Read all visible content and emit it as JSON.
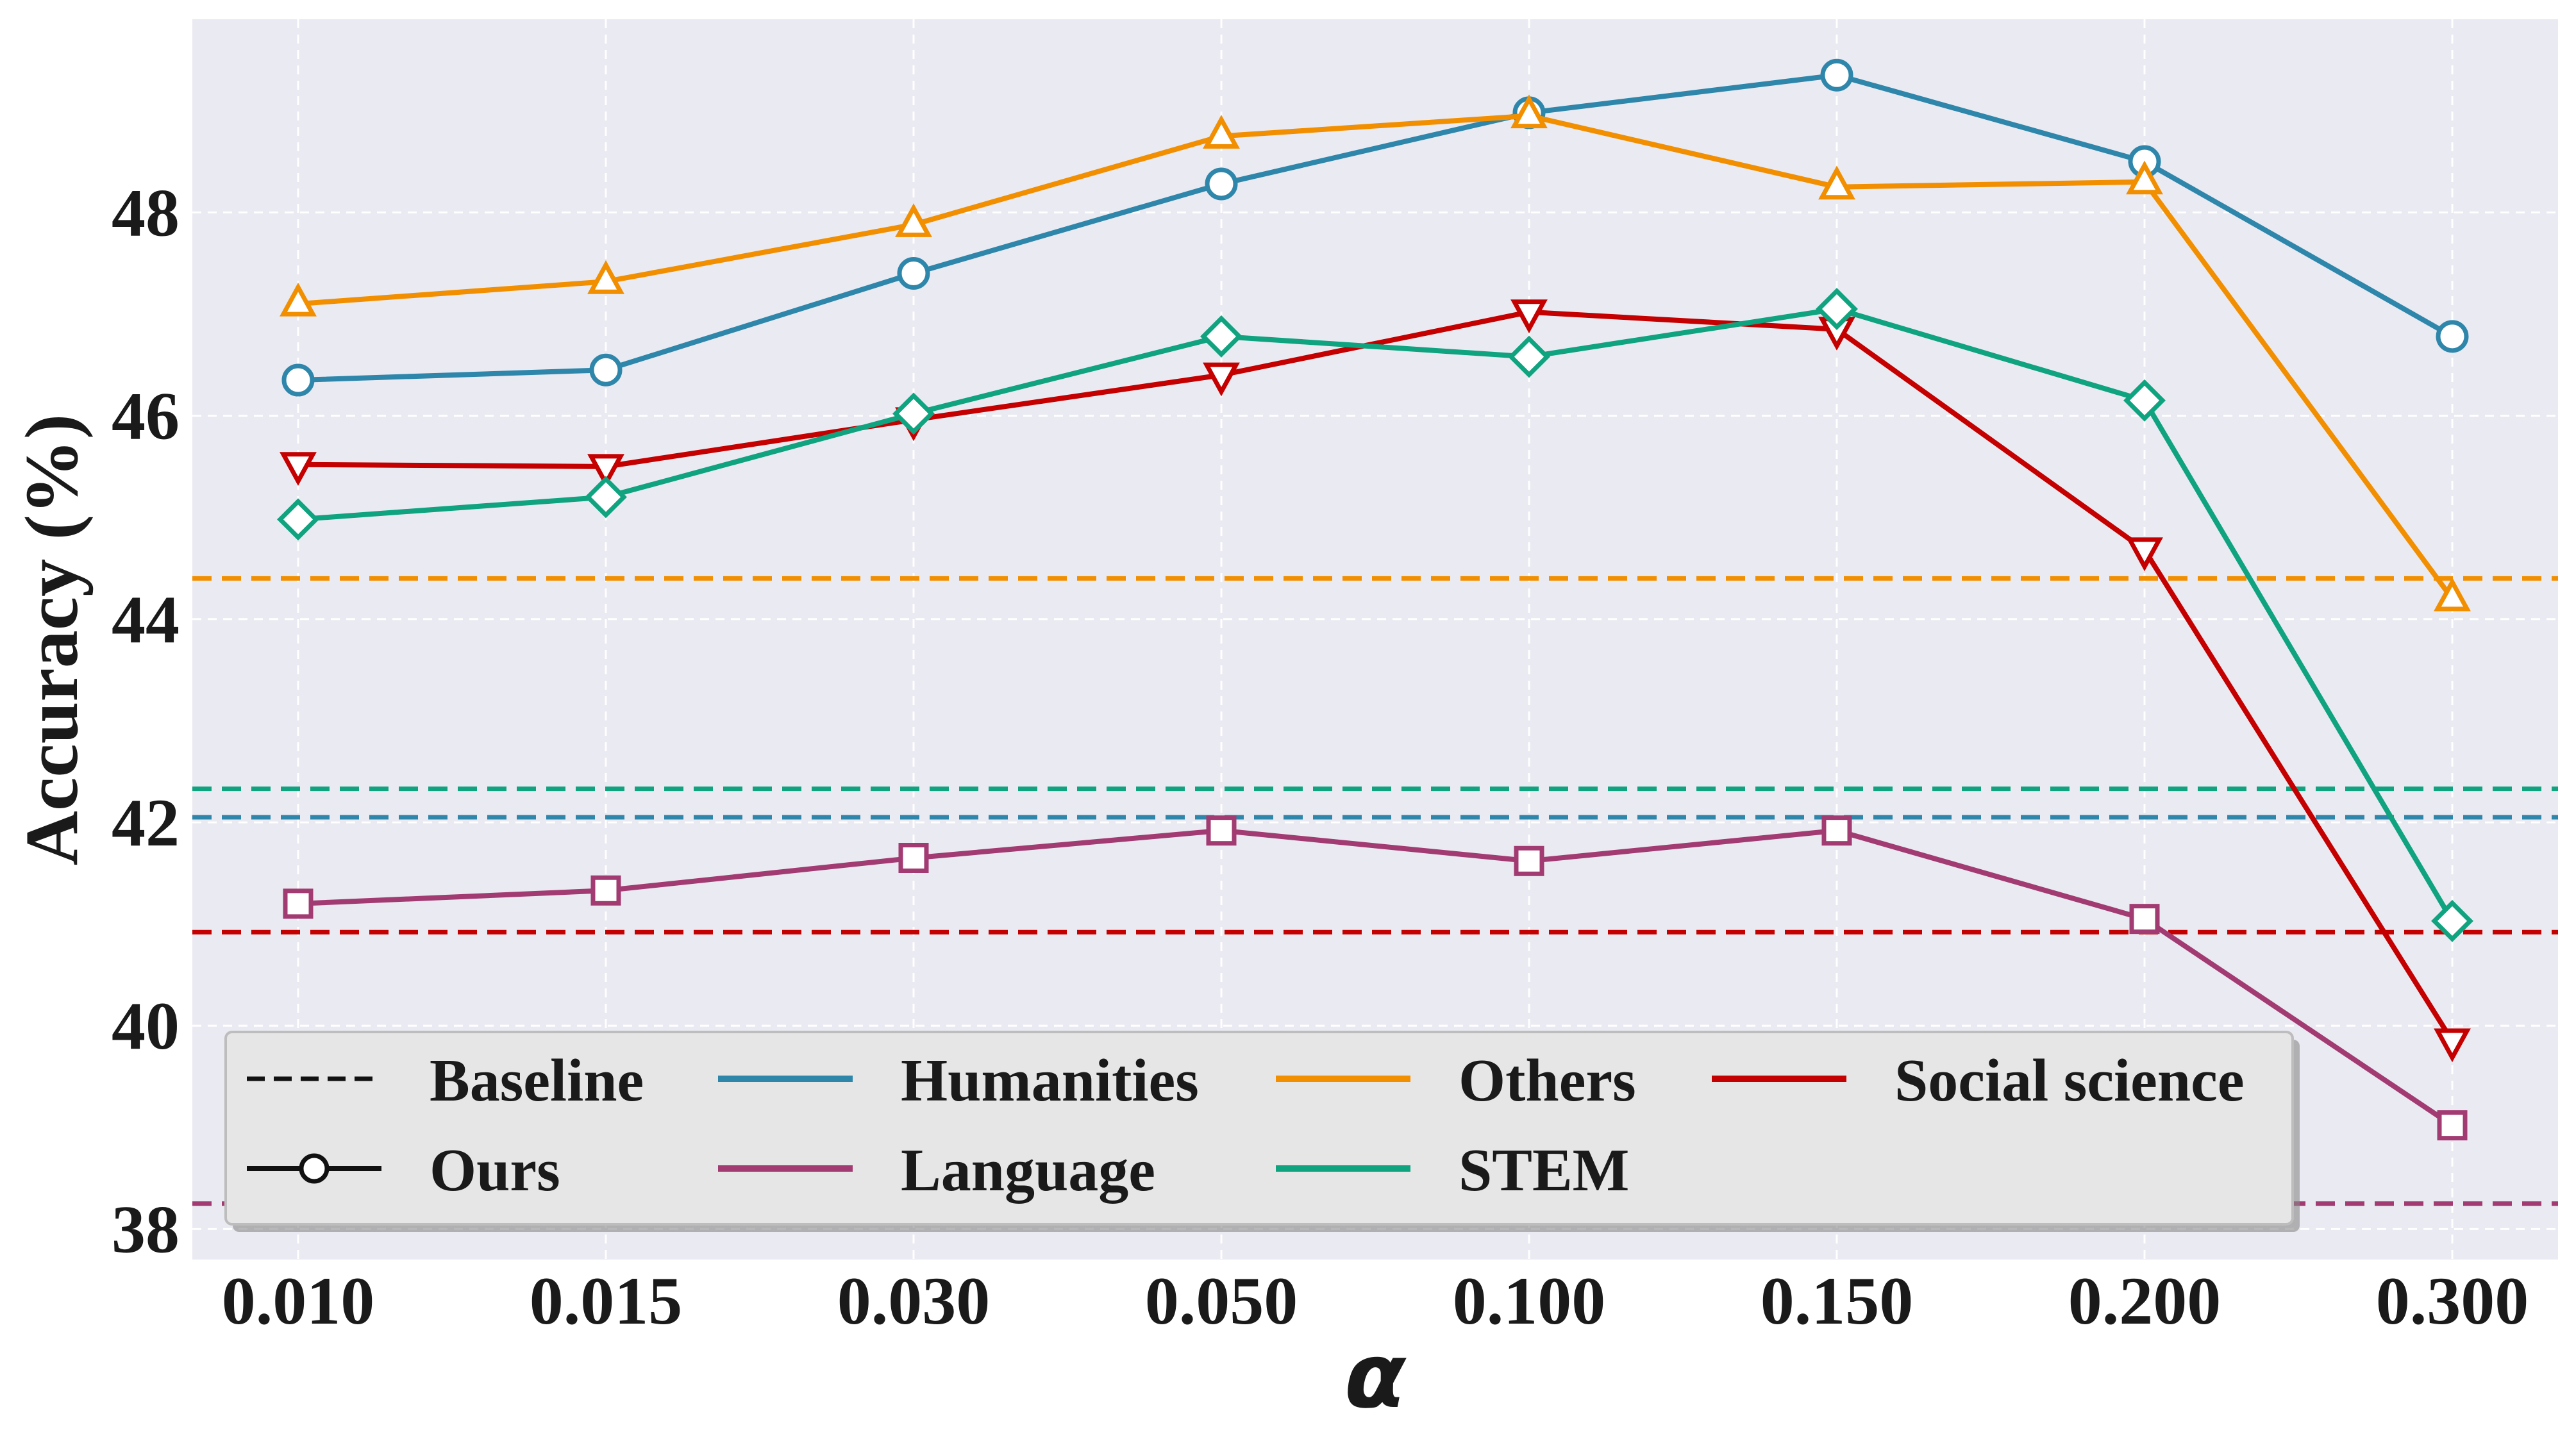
{
  "chart_data": {
    "type": "line",
    "title": "",
    "xlabel": "α",
    "ylabel": "Accuracy (%)",
    "categories": [
      "0.010",
      "0.015",
      "0.030",
      "0.050",
      "0.100",
      "0.150",
      "0.200",
      "0.300"
    ],
    "ylim": [
      37.7,
      49.9
    ],
    "yticks": [
      "38",
      "40",
      "42",
      "44",
      "46",
      "48"
    ],
    "grid": true,
    "legend_position": "lower-left",
    "series": [
      {
        "name": "Humanities",
        "color": "#2e86ab",
        "marker": "circle",
        "values": [
          46.35,
          46.45,
          47.4,
          48.28,
          48.98,
          49.35,
          48.5,
          46.78
        ],
        "baseline": 42.05
      },
      {
        "name": "Others",
        "color": "#f18f01",
        "marker": "triangle-up",
        "values": [
          47.1,
          47.32,
          47.88,
          48.75,
          48.95,
          48.25,
          48.3,
          44.2
        ],
        "baseline": 44.4
      },
      {
        "name": "Social science",
        "color": "#c40000",
        "marker": "triangle-down",
        "values": [
          45.52,
          45.5,
          45.96,
          46.4,
          47.02,
          46.85,
          44.68,
          39.85
        ],
        "baseline": 40.92
      },
      {
        "name": "Language",
        "color": "#a23b72",
        "marker": "square",
        "values": [
          41.2,
          41.33,
          41.65,
          41.92,
          41.62,
          41.92,
          41.05,
          39.02
        ],
        "baseline": 38.25
      },
      {
        "name": "STEM",
        "color": "#0fa37f",
        "marker": "diamond",
        "values": [
          44.98,
          45.2,
          46.02,
          46.78,
          46.58,
          47.05,
          46.15,
          41.03
        ],
        "baseline": 42.33
      }
    ],
    "legend": [
      {
        "label": "Baseline",
        "style": "dashed",
        "color": "#111111"
      },
      {
        "label": "Humanities",
        "style": "solid",
        "color": "#2e86ab"
      },
      {
        "label": "Others",
        "style": "solid",
        "color": "#f18f01"
      },
      {
        "label": "Social science",
        "style": "solid",
        "color": "#c40000"
      },
      {
        "label": "Ours",
        "style": "marker",
        "color": "#111111"
      },
      {
        "label": "Language",
        "style": "solid",
        "color": "#a23b72"
      },
      {
        "label": "STEM",
        "style": "solid",
        "color": "#0fa37f"
      }
    ]
  }
}
